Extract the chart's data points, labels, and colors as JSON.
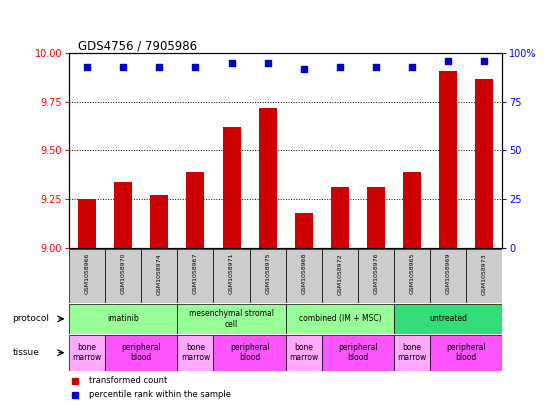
{
  "title": "GDS4756 / 7905986",
  "samples": [
    "GSM1058966",
    "GSM1058970",
    "GSM1058974",
    "GSM1058967",
    "GSM1058971",
    "GSM1058975",
    "GSM1058968",
    "GSM1058972",
    "GSM1058976",
    "GSM1058965",
    "GSM1058969",
    "GSM1058973"
  ],
  "transformed_counts": [
    9.25,
    9.34,
    9.27,
    9.39,
    9.62,
    9.72,
    9.18,
    9.31,
    9.31,
    9.39,
    9.91,
    9.87
  ],
  "percentile_ranks": [
    93,
    93,
    93,
    93,
    95,
    95,
    92,
    93,
    93,
    93,
    96,
    96
  ],
  "ylim_left": [
    9.0,
    10.0
  ],
  "ylim_right": [
    0,
    100
  ],
  "yticks_left": [
    9.0,
    9.25,
    9.5,
    9.75,
    10.0
  ],
  "yticks_right": [
    0,
    25,
    50,
    75,
    100
  ],
  "bar_color": "#cc0000",
  "dot_color": "#0000cc",
  "protocol_groups": [
    {
      "label": "imatinib",
      "start": 0,
      "end": 3,
      "color": "#99ff99"
    },
    {
      "label": "mesenchymal stromal\ncell",
      "start": 3,
      "end": 6,
      "color": "#99ff99"
    },
    {
      "label": "combined (IM + MSC)",
      "start": 6,
      "end": 9,
      "color": "#99ff99"
    },
    {
      "label": "untreated",
      "start": 9,
      "end": 12,
      "color": "#33dd77"
    }
  ],
  "tissue_groups": [
    {
      "label": "bone\nmarrow",
      "start": 0,
      "end": 1,
      "color": "#ffaaff"
    },
    {
      "label": "peripheral\nblood",
      "start": 1,
      "end": 3,
      "color": "#ff55ff"
    },
    {
      "label": "bone\nmarrow",
      "start": 3,
      "end": 4,
      "color": "#ffaaff"
    },
    {
      "label": "peripheral\nblood",
      "start": 4,
      "end": 6,
      "color": "#ff55ff"
    },
    {
      "label": "bone\nmarrow",
      "start": 6,
      "end": 7,
      "color": "#ffaaff"
    },
    {
      "label": "peripheral\nblood",
      "start": 7,
      "end": 9,
      "color": "#ff55ff"
    },
    {
      "label": "bone\nmarrow",
      "start": 9,
      "end": 10,
      "color": "#ffaaff"
    },
    {
      "label": "peripheral\nblood",
      "start": 10,
      "end": 12,
      "color": "#ff55ff"
    }
  ],
  "legend_items": [
    {
      "label": "transformed count",
      "color": "#cc0000"
    },
    {
      "label": "percentile rank within the sample",
      "color": "#0000cc"
    }
  ],
  "background_color": "#ffffff",
  "sample_bg_color": "#cccccc"
}
